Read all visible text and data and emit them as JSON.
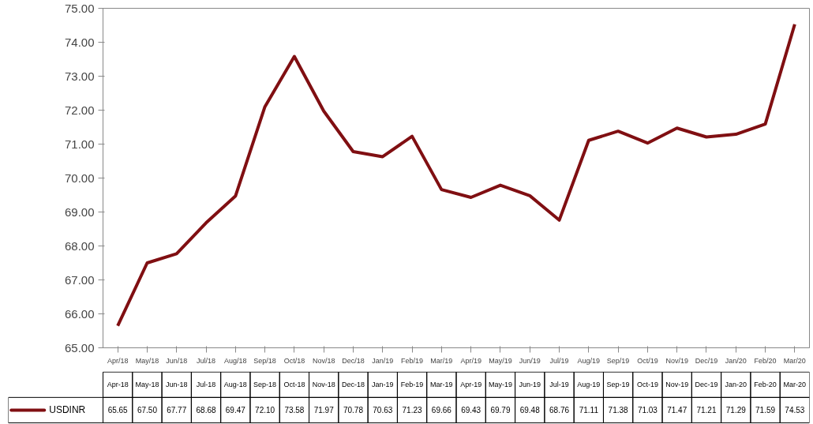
{
  "chart_data": {
    "type": "line",
    "categories": [
      "Apr/18",
      "May/18",
      "Jun/18",
      "Jul/18",
      "Aug/18",
      "Sep/18",
      "Oct/18",
      "Nov/18",
      "Dec/18",
      "Jan/19",
      "Feb/19",
      "Mar/19",
      "Apr/19",
      "May/19",
      "Jun/19",
      "Jul/19",
      "Aug/19",
      "Sep/19",
      "Oct/19",
      "Nov/19",
      "Dec/19",
      "Jan/20",
      "Feb/20",
      "Mar/20"
    ],
    "series": [
      {
        "name": "USDINR",
        "color": "#800f12",
        "values": [
          65.65,
          67.5,
          67.77,
          68.68,
          69.47,
          72.1,
          73.58,
          71.97,
          70.78,
          70.63,
          71.23,
          69.66,
          69.43,
          69.79,
          69.48,
          68.76,
          71.11,
          71.38,
          71.03,
          71.47,
          71.21,
          71.29,
          71.59,
          74.53
        ],
        "value_labels": [
          "65.65",
          "67.50",
          "67.77",
          "68.68",
          "69.47",
          "72.10",
          "73.58",
          "71.97",
          "70.78",
          "70.63",
          "71.23",
          "69.66",
          "69.43",
          "69.79",
          "69.48",
          "68.76",
          "71.11",
          "71.38",
          "71.03",
          "71.47",
          "71.21",
          "71.29",
          "71.59",
          "74.53"
        ]
      }
    ],
    "ylim": [
      65,
      75
    ],
    "yticks": [
      {
        "value": 65,
        "label": "65.00"
      },
      {
        "value": 66,
        "label": "66.00"
      },
      {
        "value": 67,
        "label": "67.00"
      },
      {
        "value": 68,
        "label": "68.00"
      },
      {
        "value": 69,
        "label": "69.00"
      },
      {
        "value": 70,
        "label": "70.00"
      },
      {
        "value": 71,
        "label": "71.00"
      },
      {
        "value": 72,
        "label": "72.00"
      },
      {
        "value": 73,
        "label": "73.00"
      },
      {
        "value": 74,
        "label": "74.00"
      },
      {
        "value": 75,
        "label": "75.00"
      }
    ],
    "annotations": [
      "Apr-18",
      "May-18",
      "Jun-18",
      "Jul-18",
      "Aug-18",
      "Sep-18",
      "Oct-18",
      "Nov-18",
      "Dec-18",
      "Jan-19",
      "Feb-19",
      "Mar-19",
      "Apr-19",
      "May-19",
      "Jun-19",
      "Jul-19",
      "Aug-19",
      "Sep-19",
      "Oct-19",
      "Nov-19",
      "Dec-19",
      "Jan-20",
      "Feb-20",
      "Mar-20"
    ],
    "grid": false,
    "legend": "bottom",
    "line_style": "solid",
    "marker": "none"
  }
}
